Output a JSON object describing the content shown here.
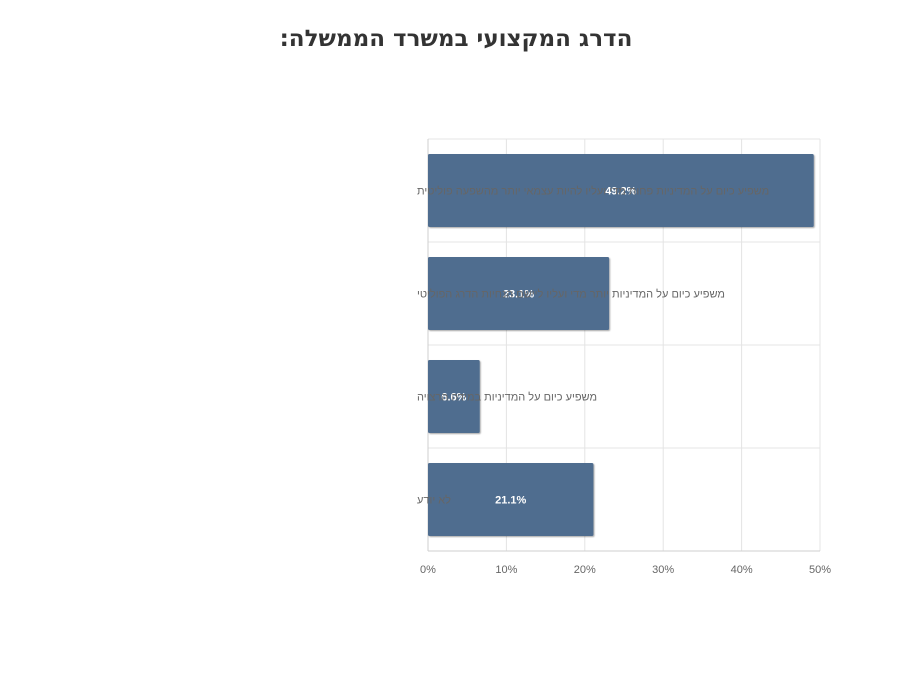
{
  "chart_data": {
    "type": "bar",
    "orientation": "horizontal",
    "title": "הדרג המקצועי במשרד הממשלה:",
    "categories": [
      "משפיע כיום על המדיניות פחות מדי ועליו להיות עצמאי יותר מהשפעה פוליטית",
      "משפיע כיום על המדיניות יותר מדי ועליו ליישם הנחיות הדרג הפוליטי",
      "משפיע כיום על המדיניות במידה הרצויה",
      "לא יודע"
    ],
    "values": [
      49.2,
      23.1,
      6.6,
      21.1
    ],
    "data_labels": [
      "49.2%",
      "23.1%",
      "6.6%",
      "21.1%"
    ],
    "xlim": [
      0,
      50
    ],
    "x_ticks": [
      0,
      10,
      20,
      30,
      40,
      50
    ],
    "x_tick_labels": [
      "0%",
      "10%",
      "20%",
      "30%",
      "40%",
      "50%"
    ],
    "grid": true,
    "bar_color": "#506d8f"
  }
}
